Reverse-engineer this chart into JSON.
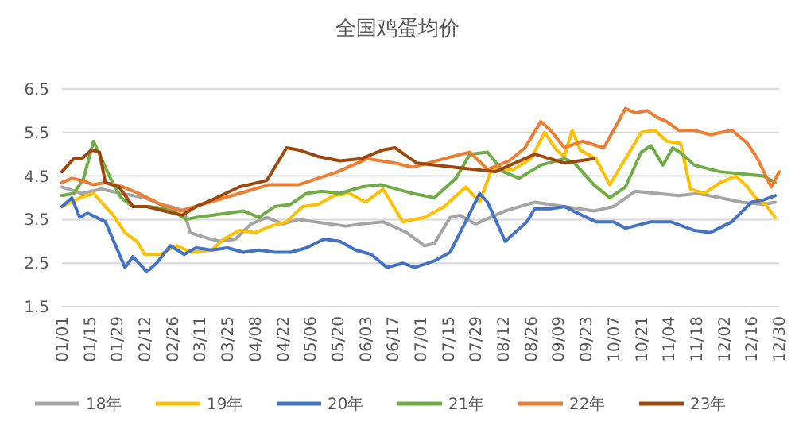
{
  "chart_data": {
    "type": "line",
    "title": "全国鸡蛋均价",
    "xlim": [
      "--01-01",
      "--12-30"
    ],
    "xticks": [
      {
        "value": "--01-01",
        "label": "01/01"
      },
      {
        "value": "--01-15",
        "label": "01/15"
      },
      {
        "value": "--01-29",
        "label": "01/29"
      },
      {
        "value": "--02-12",
        "label": "02/12"
      },
      {
        "value": "--02-26",
        "label": "02/26"
      },
      {
        "value": "--03-11",
        "label": "03/11"
      },
      {
        "value": "--03-25",
        "label": "03/25"
      },
      {
        "value": "--04-08",
        "label": "04/08"
      },
      {
        "value": "--04-22",
        "label": "04/22"
      },
      {
        "value": "--05-06",
        "label": "05/06"
      },
      {
        "value": "--05-20",
        "label": "05/20"
      },
      {
        "value": "--06-03",
        "label": "06/03"
      },
      {
        "value": "--06-17",
        "label": "06/17"
      },
      {
        "value": "--07-01",
        "label": "07/01"
      },
      {
        "value": "--07-15",
        "label": "07/15"
      },
      {
        "value": "--07-29",
        "label": "07/29"
      },
      {
        "value": "--08-12",
        "label": "08/12"
      },
      {
        "value": "--08-26",
        "label": "08/26"
      },
      {
        "value": "--09-09",
        "label": "09/09"
      },
      {
        "value": "--09-23",
        "label": "09/23"
      },
      {
        "value": "--10-07",
        "label": "10/07"
      },
      {
        "value": "--10-21",
        "label": "10/21"
      },
      {
        "value": "--11-04",
        "label": "11/04"
      },
      {
        "value": "--11-18",
        "label": "11/18"
      },
      {
        "value": "--12-02",
        "label": "12/02"
      },
      {
        "value": "--12-16",
        "label": "12/16"
      },
      {
        "value": "--12-30",
        "label": "12/30"
      }
    ],
    "ylim": [
      1.5,
      6.5
    ],
    "yticks": [
      1.5,
      2.5,
      3.5,
      4.5,
      5.5,
      6.5
    ],
    "grid": "y",
    "legend": "bottom",
    "marker": "none",
    "line_style": "solid",
    "series": [
      {
        "name": "18年",
        "color": "#a5a5a5",
        "x": [
          "--01-01",
          "--01-11",
          "--01-21",
          "--01-31",
          "--02-12",
          "--02-20",
          "--02-25",
          "--03-03",
          "--03-06",
          "--03-13",
          "--03-21",
          "--03-29",
          "--04-06",
          "--04-14",
          "--04-22",
          "--04-30",
          "--05-08",
          "--05-16",
          "--05-24",
          "--06-01",
          "--06-12",
          "--06-24",
          "--07-03",
          "--07-08",
          "--07-16",
          "--07-21",
          "--07-29",
          "--08-13",
          "--08-28",
          "--09-12",
          "--09-27",
          "--10-07",
          "--10-18",
          "--10-29",
          "--11-09",
          "--11-19",
          "--11-30",
          "--12-11",
          "--12-22",
          "--12-28"
        ],
        "values": [
          4.25,
          4.1,
          4.2,
          4.1,
          4.0,
          3.85,
          3.8,
          3.7,
          3.2,
          3.1,
          3.0,
          3.05,
          3.4,
          3.55,
          3.4,
          3.5,
          3.45,
          3.4,
          3.35,
          3.4,
          3.45,
          3.2,
          2.9,
          2.95,
          3.55,
          3.6,
          3.4,
          3.7,
          3.9,
          3.8,
          3.7,
          3.8,
          4.15,
          4.1,
          4.05,
          4.1,
          4.0,
          3.9,
          3.85,
          3.9
        ]
      },
      {
        "name": "19年",
        "color": "#ffc000",
        "x": [
          "--01-01",
          "--01-10",
          "--01-17",
          "--01-23",
          "--01-27",
          "--02-02",
          "--02-08",
          "--02-12",
          "--02-20",
          "--02-28",
          "--03-07",
          "--03-17",
          "--03-23",
          "--03-31",
          "--04-08",
          "--04-16",
          "--04-24",
          "--05-02",
          "--05-10",
          "--05-18",
          "--05-26",
          "--06-03",
          "--06-12",
          "--06-22",
          "--07-03",
          "--07-13",
          "--07-24",
          "--07-31",
          "--08-06",
          "--08-17",
          "--08-26",
          "--09-02",
          "--09-08",
          "--09-12",
          "--09-16",
          "--09-20",
          "--09-28",
          "--10-05",
          "--10-13",
          "--10-21",
          "--10-28",
          "--11-03",
          "--11-10",
          "--11-15",
          "--11-22",
          "--11-30",
          "--12-08",
          "--12-14",
          "--12-18",
          "--12-23",
          "--12-28"
        ],
        "values": [
          3.8,
          4.0,
          4.1,
          3.8,
          3.6,
          3.2,
          3.0,
          2.7,
          2.7,
          2.9,
          2.75,
          2.8,
          3.05,
          3.25,
          3.2,
          3.35,
          3.45,
          3.8,
          3.85,
          4.05,
          4.1,
          3.9,
          4.2,
          3.45,
          3.55,
          3.8,
          4.25,
          3.9,
          4.65,
          4.65,
          4.9,
          5.5,
          5.1,
          4.95,
          5.55,
          5.1,
          4.9,
          4.3,
          4.9,
          5.5,
          5.55,
          5.3,
          5.25,
          4.2,
          4.1,
          4.35,
          4.5,
          4.25,
          4.0,
          3.85,
          3.55
        ]
      },
      {
        "name": "20年",
        "color": "#4472c4",
        "x": [
          "--01-01",
          "--01-06",
          "--01-10",
          "--01-14",
          "--01-23",
          "--02-02",
          "--02-06",
          "--02-13",
          "--02-18",
          "--02-25",
          "--03-03",
          "--03-09",
          "--03-17",
          "--03-25",
          "--04-02",
          "--04-10",
          "--04-18",
          "--04-26",
          "--05-04",
          "--05-13",
          "--05-21",
          "--05-29",
          "--06-06",
          "--06-14",
          "--06-22",
          "--06-28",
          "--07-08",
          "--07-16",
          "--07-25",
          "--07-31",
          "--08-04",
          "--08-13",
          "--08-24",
          "--08-28",
          "--09-05",
          "--09-12",
          "--09-21",
          "--09-28",
          "--10-07",
          "--10-13",
          "--10-26",
          "--11-05",
          "--11-17",
          "--11-25",
          "--12-06",
          "--12-16",
          "--12-22",
          "--12-28"
        ],
        "values": [
          3.8,
          4.0,
          3.55,
          3.65,
          3.45,
          2.4,
          2.65,
          2.3,
          2.5,
          2.9,
          2.7,
          2.85,
          2.8,
          2.85,
          2.75,
          2.8,
          2.75,
          2.75,
          2.85,
          3.05,
          3.0,
          2.8,
          2.7,
          2.4,
          2.5,
          2.4,
          2.55,
          2.75,
          3.55,
          4.1,
          3.9,
          3.0,
          3.45,
          3.75,
          3.75,
          3.8,
          3.6,
          3.45,
          3.45,
          3.3,
          3.45,
          3.45,
          3.25,
          3.2,
          3.45,
          3.9,
          3.95,
          4.05
        ]
      },
      {
        "name": "21年",
        "color": "#70ad47",
        "x": [
          "--01-01",
          "--01-07",
          "--01-12",
          "--01-17",
          "--01-21",
          "--01-25",
          "--01-31",
          "--02-06",
          "--02-14",
          "--02-22",
          "--02-28",
          "--03-04",
          "--03-09",
          "--03-17",
          "--03-25",
          "--04-02",
          "--04-10",
          "--04-18",
          "--04-26",
          "--05-04",
          "--05-12",
          "--05-21",
          "--06-01",
          "--06-11",
          "--06-27",
          "--07-08",
          "--07-19",
          "--07-26",
          "--08-04",
          "--08-12",
          "--08-20",
          "--08-31",
          "--09-12",
          "--09-17",
          "--09-27",
          "--10-05",
          "--10-13",
          "--10-21",
          "--10-26",
          "--11-01",
          "--11-06",
          "--11-11",
          "--11-17",
          "--11-30",
          "--12-11",
          "--12-22",
          "--12-28"
        ],
        "values": [
          4.05,
          4.1,
          4.45,
          5.3,
          4.9,
          4.5,
          4.0,
          3.8,
          3.8,
          3.75,
          3.65,
          3.5,
          3.55,
          3.6,
          3.65,
          3.7,
          3.55,
          3.8,
          3.85,
          4.1,
          4.15,
          4.1,
          4.25,
          4.3,
          4.1,
          4.0,
          4.45,
          5.0,
          5.05,
          4.6,
          4.45,
          4.75,
          4.9,
          4.8,
          4.3,
          4.0,
          4.25,
          5.05,
          5.2,
          4.75,
          5.15,
          5.0,
          4.75,
          4.6,
          4.55,
          4.5,
          4.35
        ]
      },
      {
        "name": "22年",
        "color": "#ed7d31",
        "x": [
          "--01-01",
          "--01-06",
          "--01-11",
          "--01-17",
          "--01-23",
          "--02-01",
          "--02-09",
          "--02-20",
          "--03-01",
          "--03-16",
          "--03-31",
          "--04-15",
          "--04-30",
          "--05-20",
          "--06-04",
          "--06-18",
          "--06-27",
          "--07-13",
          "--07-26",
          "--08-04",
          "--08-15",
          "--08-23",
          "--08-31",
          "--09-05",
          "--09-12",
          "--09-21",
          "--10-02",
          "--10-07",
          "--10-13",
          "--10-18",
          "--10-24",
          "--10-29",
          "--11-03",
          "--11-09",
          "--11-17",
          "--11-25",
          "--12-06",
          "--12-14",
          "--12-19",
          "--12-26",
          "--12-30"
        ],
        "values": [
          4.35,
          4.45,
          4.4,
          4.3,
          4.35,
          4.25,
          4.1,
          3.85,
          3.7,
          3.9,
          4.1,
          4.3,
          4.3,
          4.6,
          4.9,
          4.8,
          4.7,
          4.9,
          5.05,
          4.65,
          4.85,
          5.15,
          5.75,
          5.55,
          5.15,
          5.3,
          5.15,
          5.55,
          6.05,
          5.95,
          6.0,
          5.85,
          5.75,
          5.55,
          5.55,
          5.45,
          5.55,
          5.25,
          4.9,
          4.25,
          4.6
        ]
      },
      {
        "name": "23年",
        "color": "#9e480e",
        "x": [
          "--01-01",
          "--01-07",
          "--01-11",
          "--01-16",
          "--01-20",
          "--01-23",
          "--01-30",
          "--02-06",
          "--02-13",
          "--02-22",
          "--03-02",
          "--03-09",
          "--03-17",
          "--03-31",
          "--04-14",
          "--04-24",
          "--04-30",
          "--05-10",
          "--05-21",
          "--06-01",
          "--06-12",
          "--06-18",
          "--06-29",
          "--07-19",
          "--08-08",
          "--08-28",
          "--09-12",
          "--09-27"
        ],
        "values": [
          4.6,
          4.9,
          4.9,
          5.1,
          5.05,
          4.35,
          4.25,
          3.8,
          3.8,
          3.7,
          3.6,
          3.8,
          3.95,
          4.25,
          4.4,
          5.15,
          5.1,
          4.95,
          4.85,
          4.9,
          5.1,
          5.15,
          4.8,
          4.7,
          4.6,
          5.0,
          4.8,
          4.9
        ]
      }
    ]
  }
}
